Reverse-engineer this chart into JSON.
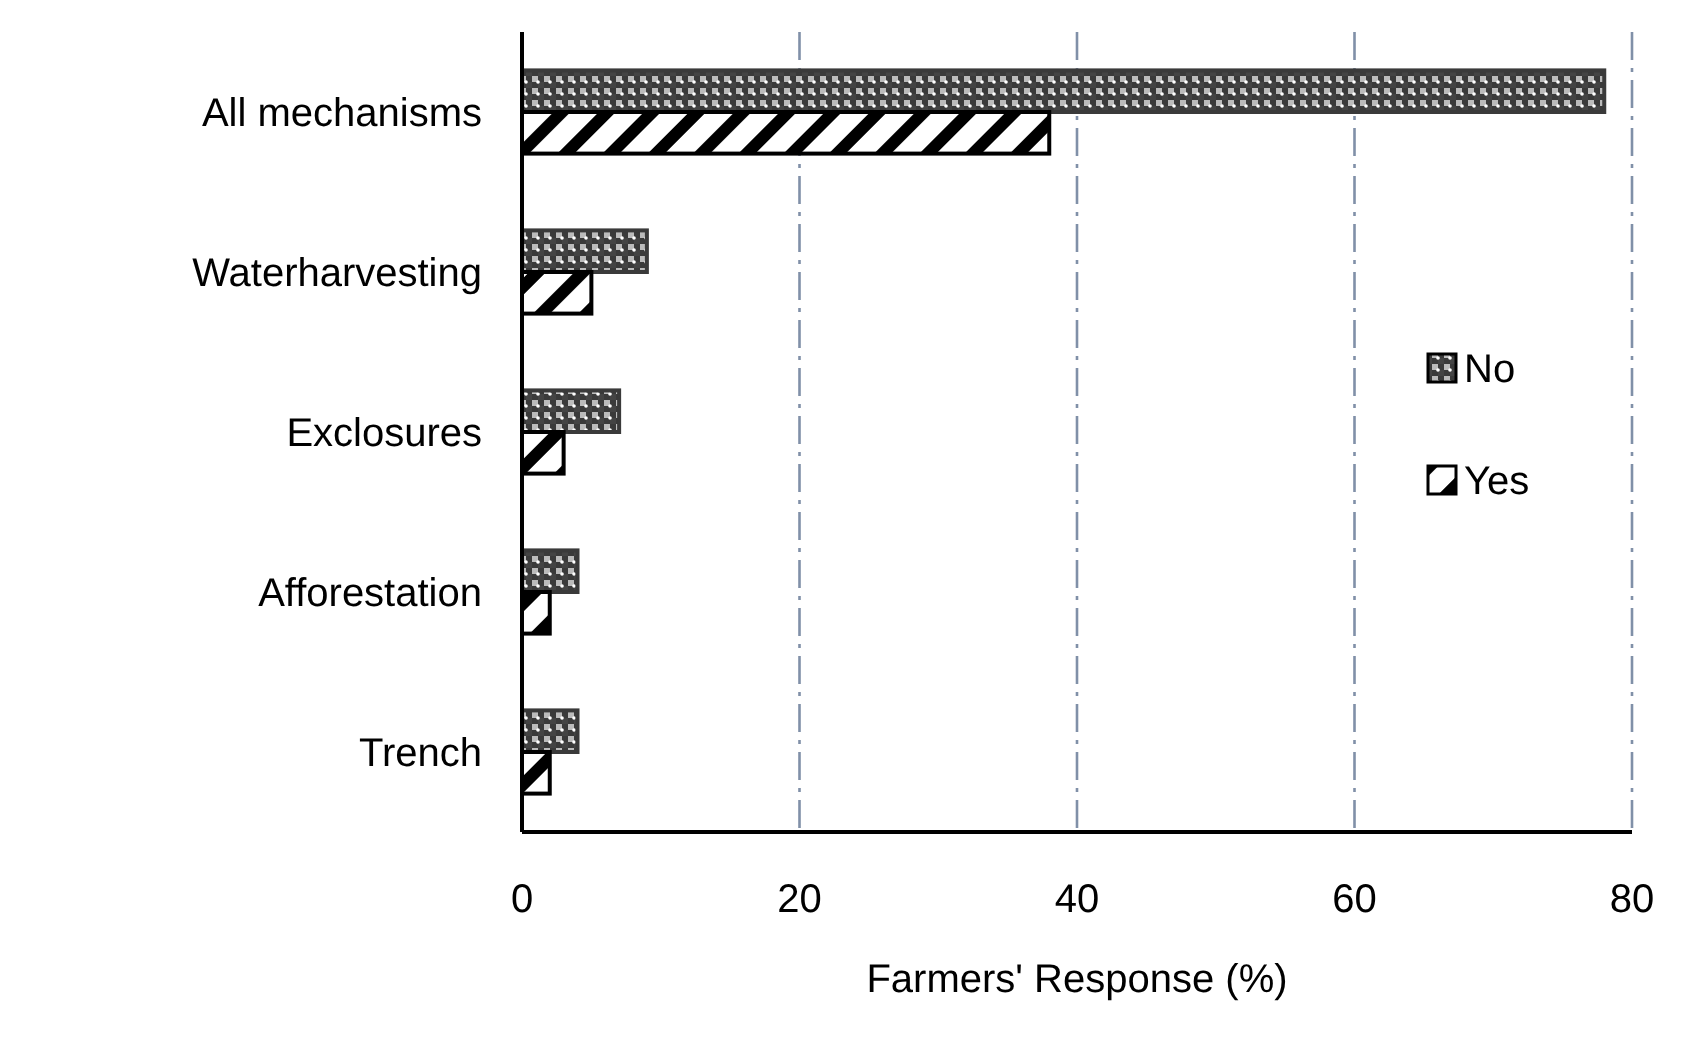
{
  "chart_data": {
    "type": "bar",
    "orientation": "horizontal",
    "xlabel": "Farmers' Response (%)",
    "categories": [
      "All mechanisms",
      "Waterharvesting",
      "Exclosures",
      "Afforestation",
      "Trench"
    ],
    "series": [
      {
        "name": "No",
        "color": "#3a3a3a",
        "values": [
          78,
          9,
          7,
          4,
          4
        ]
      },
      {
        "name": "Yes",
        "color": "#000000",
        "values": [
          38,
          5,
          3,
          2,
          2
        ]
      }
    ],
    "xlim": [
      0,
      80
    ],
    "xticks": [
      0,
      20,
      40,
      60,
      80
    ],
    "grid": "x",
    "legend": "right"
  }
}
